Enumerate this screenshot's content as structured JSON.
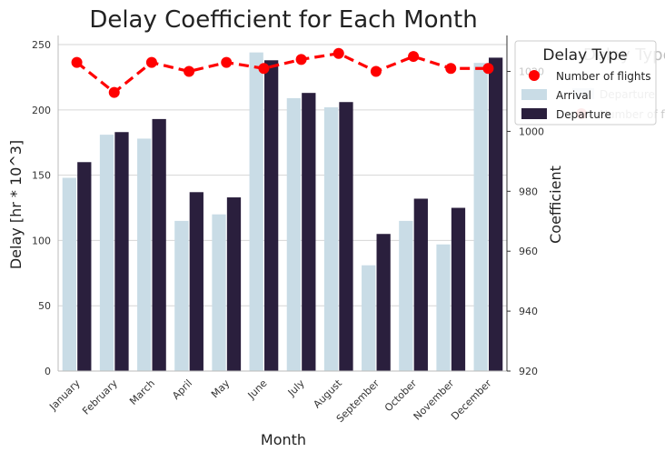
{
  "chart_data": {
    "type": "bar",
    "title": "Delay Coefficient for Each Month",
    "xlabel": "Month",
    "ylabel": "Delay [hr * 10^3]",
    "y2label": "Coefficient",
    "categories": [
      "January",
      "February",
      "March",
      "April",
      "May",
      "June",
      "July",
      "August",
      "September",
      "October",
      "November",
      "December"
    ],
    "ylim": [
      0,
      257
    ],
    "y_ticks": [
      0,
      50,
      100,
      150,
      200,
      250
    ],
    "y2lim": [
      920,
      1032
    ],
    "y2_ticks": [
      920,
      940,
      960,
      980,
      1000,
      1020
    ],
    "series": [
      {
        "name": "Arrival",
        "kind": "bar",
        "axis": "left",
        "color": "#c9dce6",
        "values": [
          148,
          181,
          178,
          115,
          120,
          244,
          209,
          202,
          81,
          115,
          97,
          236
        ]
      },
      {
        "name": "Departure",
        "kind": "bar",
        "axis": "left",
        "color": "#2a1f3d",
        "values": [
          160,
          183,
          193,
          137,
          133,
          238,
          213,
          206,
          105,
          132,
          125,
          240
        ]
      },
      {
        "name": "Number of flights",
        "kind": "line",
        "axis": "right",
        "color": "#ff0000",
        "style": "dashed",
        "values": [
          1023,
          1013,
          1023,
          1020,
          1023,
          1021,
          1024,
          1026,
          1020,
          1025,
          1021,
          1021
        ]
      }
    ],
    "legend": {
      "title": "Delay Type",
      "placement": "upper-right outside",
      "entries": [
        "Number of flights",
        "Arrival",
        "Departure"
      ]
    },
    "ghost_legend": {
      "title": "Delay Type",
      "entries": [
        "Arrival",
        "Departure",
        "Number of flights"
      ]
    },
    "grid": "horizontal"
  }
}
